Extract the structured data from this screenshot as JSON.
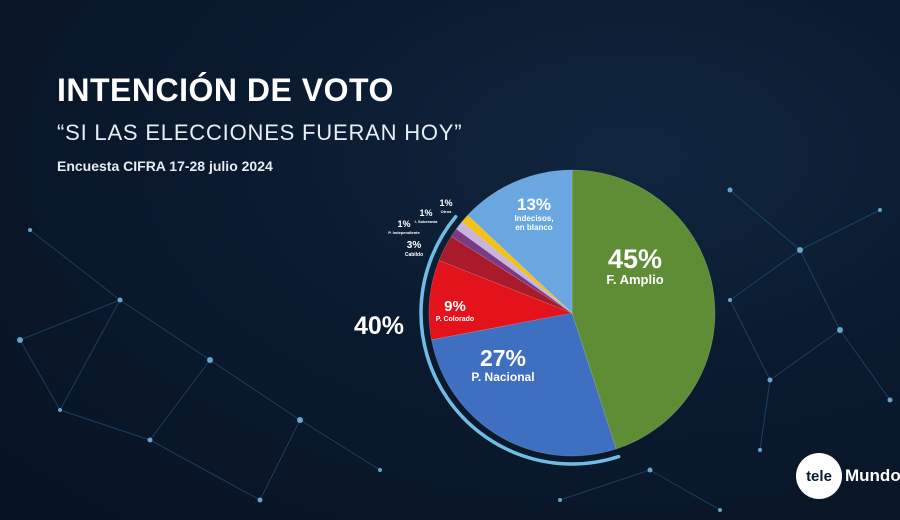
{
  "header": {
    "title": "INTENCIÓN DE VOTO",
    "subtitle": "“SI LAS ELECCIONES FUERAN HOY”",
    "source": "Encuesta CIFRA 17-28 julio 2024"
  },
  "chart_data": {
    "type": "pie",
    "start_angle_deg": 0,
    "direction": "clockwise",
    "slices": [
      {
        "name": "F. Amplio",
        "value": 45,
        "label": "45%",
        "color": "#5f8d36"
      },
      {
        "name": "P. Nacional",
        "value": 27,
        "label": "27%",
        "color": "#3f6fc0"
      },
      {
        "name": "P. Colorado",
        "value": 9,
        "label": "9%",
        "color": "#e3121b"
      },
      {
        "name": "Cabildo",
        "value": 3,
        "label": "3%",
        "color": "#a91a2b"
      },
      {
        "name": "P. Independiente",
        "value": 1,
        "label": "1%",
        "color": "#7a3a86"
      },
      {
        "name": "I. Soberanía",
        "value": 1,
        "label": "1%",
        "color": "#c9b3e0"
      },
      {
        "name": "Otros",
        "value": 1,
        "label": "1%",
        "color": "#f2c21a"
      },
      {
        "name": "Indecisos, en blanco",
        "value": 13,
        "label": "13%",
        "color": "#6aa6df"
      }
    ],
    "group_total": {
      "label": "40%",
      "members": [
        "P. Nacional",
        "P. Colorado",
        "Cabildo",
        "P. Independiente",
        "I. Soberanía"
      ],
      "color": "#6fbde6"
    }
  },
  "brand": {
    "circle_text": "tele",
    "text": "Mundo"
  }
}
